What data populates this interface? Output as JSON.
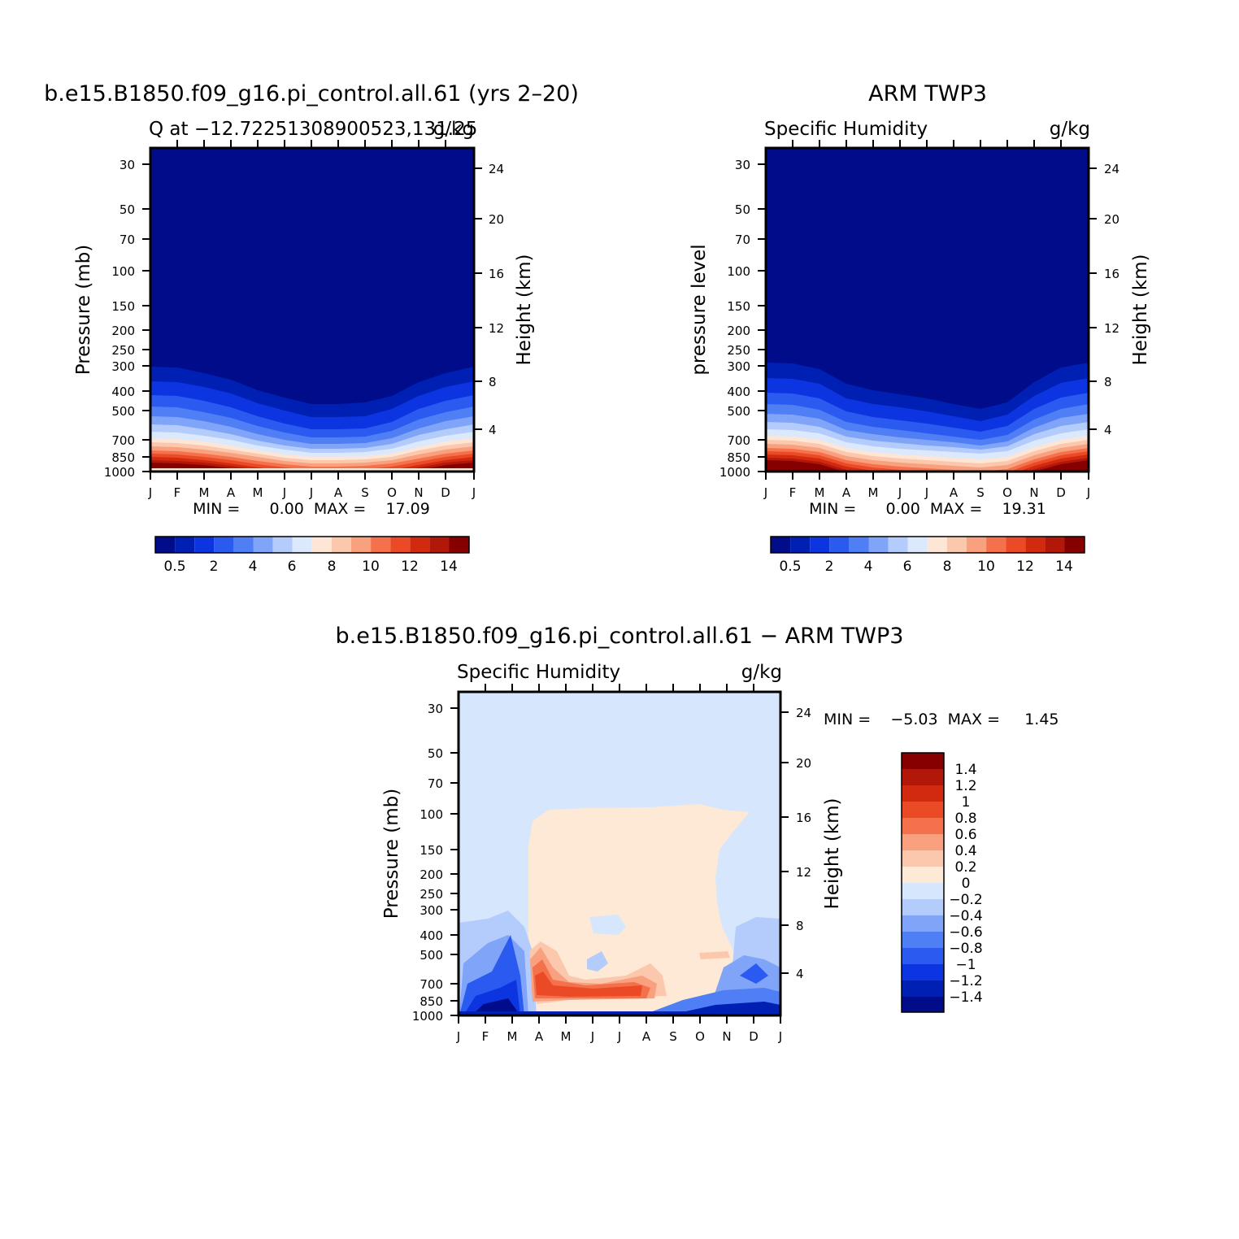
{
  "colors": {
    "sequential": [
      "#000c8a",
      "#0020b4",
      "#0c34e0",
      "#2a5af0",
      "#4f7ef5",
      "#7fa4f8",
      "#b3ccfb",
      "#dce9fd",
      "#fde6d6",
      "#fbc8ad",
      "#f9a07e",
      "#f4714c",
      "#eb4a26",
      "#d22a0e",
      "#b1180a",
      "#870000"
    ],
    "diverging": [
      "#000c8a",
      "#0020b4",
      "#0c34e0",
      "#2a5af0",
      "#4f7ef5",
      "#7fa4f8",
      "#b3ccfb",
      "#d6e6fd",
      "#fde9d6",
      "#fbc8ad",
      "#f9a07e",
      "#f4714c",
      "#eb4a26",
      "#d22a0e",
      "#b1180a",
      "#870000"
    ]
  },
  "panels": [
    {
      "id": "model",
      "title": "b.e15.B1850.f09_g16.pi_control.all.61 (yrs 2–20)",
      "left_label": "Q at −12.72251308900523,131.25",
      "right_label": "g/kg",
      "ylabel": "Pressure (mb)",
      "y2label": "Height (km)",
      "stats": "MIN =      0.00  MAX =    17.09"
    },
    {
      "id": "obs",
      "title": "ARM TWP3",
      "left_label": "Specific Humidity",
      "right_label": "g/kg",
      "ylabel": "pressure level",
      "y2label": "Height (km)",
      "stats": "MIN =      0.00  MAX =    19.31"
    },
    {
      "id": "diff",
      "title": "b.e15.B1850.f09_g16.pi_control.all.61 − ARM TWP3",
      "left_label": "Specific Humidity",
      "right_label": "g/kg",
      "ylabel": "Pressure (mb)",
      "y2label": "Height (km)",
      "stats": "MIN =    −5.03  MAX =     1.45"
    }
  ],
  "chart_data": [
    {
      "type": "heatmap",
      "title": "b.e15.B1850.f09_g16.pi_control.all.61 (yrs 2–20)",
      "ylabel": "Pressure (mb)",
      "y2label": "Height (km)",
      "x_ticks": [
        "J",
        "F",
        "M",
        "A",
        "M",
        "J",
        "J",
        "A",
        "S",
        "O",
        "N",
        "D",
        "J"
      ],
      "y_ticks": [
        30,
        50,
        70,
        100,
        150,
        200,
        250,
        300,
        400,
        500,
        700,
        850,
        1000
      ],
      "y_scale": "log",
      "ylim": [
        1000,
        25
      ],
      "y2_ticks": [
        4,
        8,
        12,
        16,
        20,
        24
      ],
      "colorbar_levels": [
        0.5,
        1,
        2,
        3,
        4,
        5,
        6,
        7,
        8,
        9,
        10,
        11,
        12,
        13,
        14
      ],
      "colorbar_labels": [
        "0.5",
        "2",
        "4",
        "6",
        "8",
        "10",
        "12",
        "14"
      ],
      "min": 0.0,
      "max": 17.09,
      "boundaries_hpa": {
        "t_months": [
          0,
          1,
          2,
          3,
          4,
          5,
          6,
          7,
          8,
          9,
          10,
          11,
          12
        ],
        "q0_5": [
          300,
          300,
          335,
          365,
          410,
          450,
          475,
          470,
          455,
          420,
          360,
          330,
          300
        ],
        "q14": [
          935,
          935,
          945,
          965,
          985,
          1000,
          1000,
          1000,
          990,
          970,
          945,
          935,
          935
        ]
      }
    },
    {
      "type": "heatmap",
      "title": "ARM TWP3",
      "ylabel": "pressure level",
      "y2label": "Height (km)",
      "x_ticks": [
        "J",
        "F",
        "M",
        "A",
        "M",
        "J",
        "J",
        "A",
        "S",
        "O",
        "N",
        "D",
        "J"
      ],
      "y_ticks": [
        30,
        50,
        70,
        100,
        150,
        200,
        250,
        300,
        400,
        500,
        700,
        850,
        1000
      ],
      "y_scale": "log",
      "ylim": [
        1000,
        25
      ],
      "y2_ticks": [
        4,
        8,
        12,
        16,
        20,
        24
      ],
      "colorbar_levels": [
        0.5,
        1,
        2,
        3,
        4,
        5,
        6,
        7,
        8,
        9,
        10,
        11,
        12,
        13,
        14
      ],
      "colorbar_labels": [
        "0.5",
        "2",
        "4",
        "6",
        "8",
        "10",
        "12",
        "14"
      ],
      "min": 0.0,
      "max": 19.31,
      "boundaries_hpa": {
        "t_months": [
          0,
          1,
          2,
          3,
          4,
          5,
          6,
          7,
          8,
          9,
          10,
          11,
          12
        ],
        "q0_5": [
          290,
          295,
          330,
          390,
          410,
          420,
          450,
          470,
          475,
          420,
          335,
          300,
          290
        ],
        "q14": [
          880,
          885,
          915,
          965,
          1000,
          1000,
          1000,
          1000,
          990,
          960,
          925,
          900,
          880
        ]
      }
    },
    {
      "type": "heatmap",
      "title": "b.e15.B1850.f09_g16.pi_control.all.61 − ARM TWP3",
      "ylabel": "Pressure (mb)",
      "y2label": "Height (km)",
      "x_ticks": [
        "J",
        "F",
        "M",
        "A",
        "M",
        "J",
        "J",
        "A",
        "S",
        "O",
        "N",
        "D",
        "J"
      ],
      "y_ticks": [
        30,
        50,
        70,
        100,
        150,
        200,
        250,
        300,
        400,
        500,
        700,
        850,
        1000
      ],
      "y_scale": "log",
      "ylim": [
        1000,
        25
      ],
      "y2_ticks": [
        4,
        8,
        12,
        16,
        20,
        24
      ],
      "colorbar_levels": [
        -1.4,
        -1.2,
        -1,
        -0.8,
        -0.6,
        -0.4,
        -0.2,
        0,
        0.2,
        0.4,
        0.6,
        0.8,
        1,
        1.2,
        1.4
      ],
      "colorbar_labels": [
        "1.4",
        "1.2",
        "1",
        "0.8",
        "0.6",
        "0.4",
        "0.2",
        "0",
        "−0.2",
        "−0.4",
        "−0.6",
        "−0.8",
        "−1",
        "−1.2",
        "−1.4"
      ],
      "min": -5.03,
      "max": 1.45,
      "features": {
        "positive_region_months": [
          2.8,
          10.8
        ],
        "positive_region_top_hpa": 95,
        "positive_max_hpa": 730,
        "negative_max_hpa": 850
      }
    }
  ]
}
